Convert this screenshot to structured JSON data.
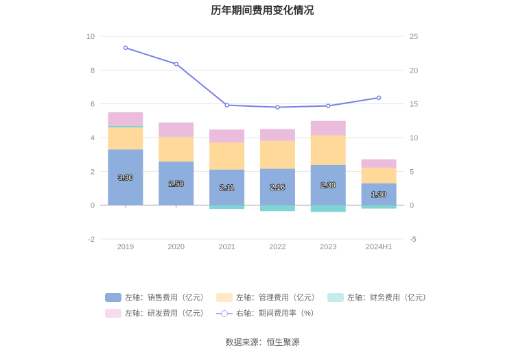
{
  "chart_data": {
    "type": "bar",
    "title": "历年期间费用变化情况",
    "categories": [
      "2019",
      "2020",
      "2021",
      "2022",
      "2023",
      "2024H1"
    ],
    "left_axis": {
      "min": -2,
      "max": 10,
      "ticks": [
        "-2",
        "0",
        "2",
        "4",
        "6",
        "8",
        "10"
      ]
    },
    "right_axis": {
      "min": -5,
      "max": 25,
      "ticks": [
        "-5",
        "0",
        "5",
        "10",
        "15",
        "20",
        "25"
      ]
    },
    "stack_series": [
      {
        "name": "左轴：销售费用（亿元）",
        "color": "#8eaedd",
        "values": [
          3.3,
          2.58,
          2.11,
          2.16,
          2.39,
          1.3
        ],
        "labels": [
          "3.30",
          "2.58",
          "2.11",
          "2.16",
          "2.39",
          "1.30"
        ]
      },
      {
        "name": "左轴：管理费用（亿元）",
        "color": "#ffd99a",
        "values": [
          1.3,
          1.45,
          1.6,
          1.65,
          1.75,
          0.92
        ],
        "labels": []
      },
      {
        "name": "左轴：财务费用（亿元）",
        "color": "#80d4d4",
        "values": [
          0.1,
          0.02,
          -0.22,
          -0.35,
          -0.4,
          -0.2
        ],
        "labels": []
      },
      {
        "name": "左轴：研发费用（亿元）",
        "color": "#ebbcdc",
        "values": [
          0.8,
          0.85,
          0.77,
          0.7,
          0.85,
          0.5
        ],
        "labels": []
      }
    ],
    "line_series": {
      "name": "右轴：期间费用率（%）",
      "color": "#7b7fe8",
      "values": [
        23.3,
        20.9,
        14.8,
        14.5,
        14.7,
        15.9
      ]
    },
    "grid": true,
    "legend_position": "bottom",
    "source": "数据来源：恒生聚源"
  },
  "legend_colors": {
    "financial_swatch": "#c4ecec",
    "research_swatch": "#f6dcef",
    "management_swatch": "#ffe9c6",
    "sales_swatch": "#8eaedd"
  }
}
